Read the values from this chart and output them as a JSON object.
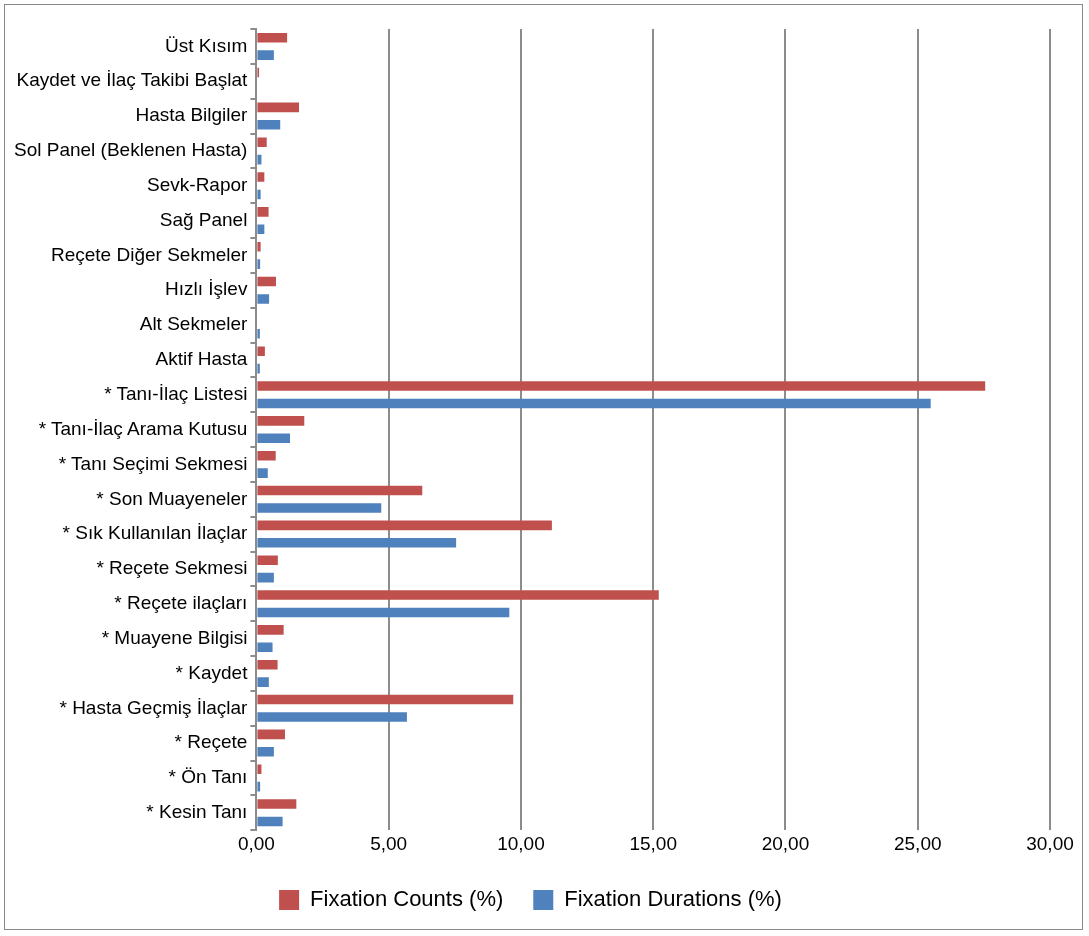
{
  "chart_data": {
    "type": "bar",
    "orientation": "horizontal",
    "categories": [
      "Üst Kısım",
      "Kaydet ve İlaç Takibi Başlat",
      "Hasta Bilgiler",
      "Sol Panel (Beklenen Hasta)",
      "Sevk-Rapor",
      "Sağ Panel",
      "Reçete Diğer Sekmeler",
      "Hızlı İşlev",
      "Alt Sekmeler",
      "Aktif Hasta",
      "* Tanı-İlaç Listesi",
      "* Tanı-İlaç Arama Kutusu",
      "* Tanı Seçimi Sekmesi",
      "* Son Muayeneler",
      "* Sık Kullanılan İlaçlar",
      "* Reçete Sekmesi",
      "* Reçete ilaçları",
      "* Muayene Bilgisi",
      "* Kaydet",
      "* Hasta Geçmiş İlaçlar",
      "* Reçete",
      "* Ön Tanı",
      "* Kesin Tanı"
    ],
    "series": [
      {
        "name": "Fixation Counts (%)",
        "color": "#c0504d",
        "values": [
          1.16,
          0.1,
          1.61,
          0.39,
          0.3,
          0.46,
          0.16,
          0.74,
          null,
          0.32,
          27.55,
          1.81,
          0.73,
          6.27,
          11.17,
          0.81,
          15.21,
          1.03,
          0.8,
          9.71,
          1.08,
          0.19,
          1.51
        ]
      },
      {
        "name": "Fixation Durations (%)",
        "color": "#4f81bd",
        "values": [
          0.66,
          null,
          0.9,
          0.19,
          0.16,
          0.3,
          0.14,
          0.48,
          0.13,
          0.13,
          25.49,
          1.27,
          0.43,
          4.72,
          7.55,
          0.66,
          9.56,
          0.61,
          0.47,
          5.69,
          0.66,
          0.14,
          0.99
        ]
      }
    ],
    "xlim": [
      0,
      30
    ],
    "xticks": [
      {
        "value": 0,
        "label": "0,00"
      },
      {
        "value": 5,
        "label": "5,00"
      },
      {
        "value": 10,
        "label": "10,00"
      },
      {
        "value": 15,
        "label": "15,00"
      },
      {
        "value": 20,
        "label": "20,00"
      },
      {
        "value": 25,
        "label": "25,00"
      },
      {
        "value": 30,
        "label": "30,00"
      }
    ],
    "grid": "x",
    "legend": "bottom"
  }
}
